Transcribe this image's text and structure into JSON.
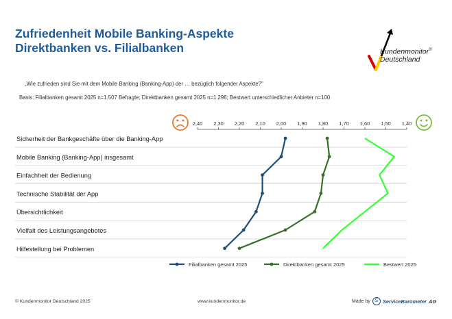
{
  "header": {
    "title_line1": "Zufriedenheit Mobile Banking-Aspekte",
    "title_line2": "Direktbanken vs. Filialbanken",
    "question": "„Wie zufrieden sind Sie mit dem Mobile Banking (Banking-App) der … bezüglich folgender Aspekte?\"",
    "basis": "Basis: Filialbanken gesamt 2025 n=1.507 Befragte; Direktbanken gesamt 2025 n=1.296; Bestwert unterschiedlicher Anbieter n=100"
  },
  "logo": {
    "line1": "Kundenmonitor",
    "line2": "Deutschland",
    "registered": "®",
    "colors": [
      "#000000",
      "#dd0000",
      "#ffcc00"
    ]
  },
  "icons": {
    "left": "sad-face-icon",
    "right": "happy-face-icon",
    "left_color": "#e8772e",
    "right_color": "#7bbf3a"
  },
  "chart_data": {
    "type": "line",
    "orientation": "horizontal-profile",
    "x_axis_reversed": true,
    "xlim": [
      2.4,
      1.4
    ],
    "x_ticks": [
      "2,40",
      "2,30",
      "2,20",
      "2,10",
      "2,00",
      "1,90",
      "1,80",
      "1,70",
      "1,60",
      "1,50",
      "1,40"
    ],
    "x_tick_values": [
      2.4,
      2.3,
      2.2,
      2.1,
      2.0,
      1.9,
      1.8,
      1.7,
      1.6,
      1.5,
      1.4
    ],
    "categories": [
      "Sicherheit der Bankgeschäfte über die Banking-App",
      "Mobile Banking (Banking-App) insgesamt",
      "Einfachheit der Bedienung",
      "Technische Stabilität der App",
      "Übersichtlichkeit",
      "Vielfalt des Leistungsangebotes",
      "Hilfestellung bei Problemen"
    ],
    "series": [
      {
        "name": "Filialbanken gesamt 2025",
        "color": "#1f4e79",
        "markers": true,
        "values": [
          1.98,
          2.0,
          2.09,
          2.09,
          2.12,
          2.18,
          2.27
        ]
      },
      {
        "name": "Direktbanken gesamt 2025",
        "color": "#3a6e2a",
        "markers": true,
        "values": [
          1.78,
          1.77,
          1.8,
          1.81,
          1.84,
          1.98,
          2.2
        ]
      },
      {
        "name": "Bestwert 2025",
        "color": "#33ff33",
        "markers": false,
        "values": [
          1.6,
          1.46,
          1.53,
          1.49,
          1.6,
          1.71,
          1.8
        ]
      }
    ],
    "legend_position": "bottom"
  },
  "footer": {
    "copyright": "© Kundenmonitor Deutschland 2025",
    "url": "www.kundenmonitor.de",
    "made_by": "Made by",
    "sb_icon_letter": "S",
    "made_by_company": "ServiceBarometer",
    "made_by_suffix": "AG"
  }
}
